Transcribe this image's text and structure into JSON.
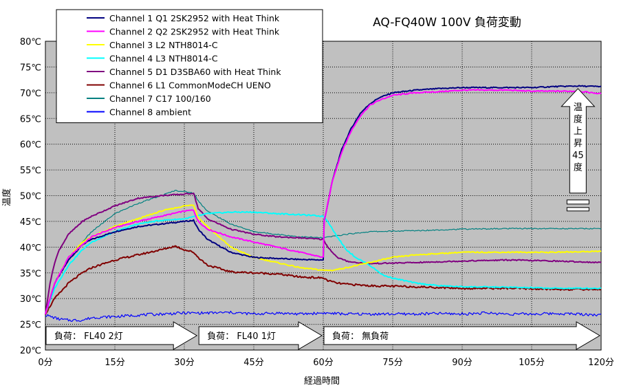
{
  "chart_data": {
    "type": "line",
    "title": "AQ-FQ40W 100V 負荷変動",
    "xlabel": "経過時間",
    "ylabel": "温度",
    "xlim": [
      0,
      120
    ],
    "ylim": [
      20,
      80
    ],
    "x_ticks": [
      0,
      15,
      30,
      45,
      60,
      75,
      90,
      105,
      120
    ],
    "x_tick_labels": [
      "0分",
      "15分",
      "30分",
      "45分",
      "60分",
      "75分",
      "90分",
      "105分",
      "120分"
    ],
    "y_ticks": [
      20,
      25,
      30,
      35,
      40,
      45,
      50,
      55,
      60,
      65,
      70,
      75,
      80
    ],
    "y_tick_labels": [
      "20℃",
      "25℃",
      "30℃",
      "35℃",
      "40℃",
      "45℃",
      "50℃",
      "55℃",
      "60℃",
      "65℃",
      "70℃",
      "75℃",
      "80℃"
    ],
    "grid": true,
    "legend_position": "top-left",
    "series": [
      {
        "name": "Channel 1  Q1  2SK2952 with Heat Think",
        "color": "#000080",
        "points": [
          [
            0,
            27
          ],
          [
            2,
            33
          ],
          [
            5,
            37.5
          ],
          [
            8,
            40.5
          ],
          [
            10,
            41.5
          ],
          [
            15,
            43
          ],
          [
            20,
            44
          ],
          [
            25,
            44.5
          ],
          [
            30,
            45
          ],
          [
            32,
            45.2
          ],
          [
            33,
            43.5
          ],
          [
            35,
            41.5
          ],
          [
            40,
            39
          ],
          [
            45,
            38
          ],
          [
            50,
            37.8
          ],
          [
            55,
            37.6
          ],
          [
            60,
            37.5
          ],
          [
            60.2,
            45
          ],
          [
            62,
            53
          ],
          [
            64,
            59
          ],
          [
            66,
            63
          ],
          [
            68,
            66
          ],
          [
            70,
            67.8
          ],
          [
            72,
            69
          ],
          [
            75,
            70
          ],
          [
            80,
            70.5
          ],
          [
            85,
            70.8
          ],
          [
            90,
            71
          ],
          [
            95,
            71
          ],
          [
            100,
            71
          ],
          [
            105,
            71
          ],
          [
            110,
            71.2
          ],
          [
            115,
            71.3
          ],
          [
            120,
            71.2
          ]
        ]
      },
      {
        "name": "Channel 2  Q2  2SK2952 with Heat Think",
        "color": "#ff00ff",
        "points": [
          [
            0,
            27
          ],
          [
            2,
            33
          ],
          [
            5,
            38
          ],
          [
            8,
            40.5
          ],
          [
            10,
            42
          ],
          [
            15,
            43.8
          ],
          [
            20,
            45
          ],
          [
            25,
            46
          ],
          [
            30,
            47
          ],
          [
            32,
            47.2
          ],
          [
            33,
            45
          ],
          [
            35,
            43.5
          ],
          [
            40,
            42
          ],
          [
            45,
            41
          ],
          [
            50,
            40
          ],
          [
            55,
            39
          ],
          [
            60,
            38
          ],
          [
            60.2,
            45
          ],
          [
            62,
            53
          ],
          [
            64,
            58.5
          ],
          [
            66,
            62.5
          ],
          [
            68,
            65.5
          ],
          [
            70,
            67.5
          ],
          [
            72,
            68.5
          ],
          [
            75,
            69.5
          ],
          [
            80,
            70
          ],
          [
            85,
            70.2
          ],
          [
            90,
            70.5
          ],
          [
            95,
            70.5
          ],
          [
            100,
            70.5
          ],
          [
            105,
            70.3
          ],
          [
            110,
            70.3
          ],
          [
            115,
            70.3
          ],
          [
            120,
            69.8
          ]
        ]
      },
      {
        "name": "Channel 3  L2  NTH8014-C",
        "color": "#ffff00",
        "points": [
          [
            0,
            27
          ],
          [
            2,
            33
          ],
          [
            5,
            38
          ],
          [
            8,
            41
          ],
          [
            10,
            42
          ],
          [
            15,
            44
          ],
          [
            20,
            45.5
          ],
          [
            25,
            47
          ],
          [
            30,
            48
          ],
          [
            32,
            48.2
          ],
          [
            33,
            45.8
          ],
          [
            35,
            44
          ],
          [
            40,
            40
          ],
          [
            45,
            38
          ],
          [
            50,
            37
          ],
          [
            55,
            36
          ],
          [
            60,
            35.5
          ],
          [
            62,
            35.5
          ],
          [
            65,
            36
          ],
          [
            70,
            37
          ],
          [
            75,
            38
          ],
          [
            80,
            38.5
          ],
          [
            90,
            39
          ],
          [
            100,
            39
          ],
          [
            110,
            39
          ],
          [
            120,
            39.2
          ]
        ]
      },
      {
        "name": "Channel 4  L3  NTH8014-C",
        "color": "#00ffff",
        "points": [
          [
            0,
            27
          ],
          [
            2,
            32
          ],
          [
            5,
            36.5
          ],
          [
            8,
            39.5
          ],
          [
            10,
            41
          ],
          [
            15,
            43
          ],
          [
            20,
            44.5
          ],
          [
            25,
            45.2
          ],
          [
            30,
            45.5
          ],
          [
            35,
            46.5
          ],
          [
            40,
            46.8
          ],
          [
            45,
            46.8
          ],
          [
            50,
            46.5
          ],
          [
            55,
            46.3
          ],
          [
            60,
            46
          ],
          [
            61,
            45
          ],
          [
            63,
            42
          ],
          [
            65,
            39.5
          ],
          [
            67,
            38
          ],
          [
            70,
            36.5
          ],
          [
            73,
            34.5
          ],
          [
            75,
            34
          ],
          [
            80,
            33
          ],
          [
            85,
            32.5
          ],
          [
            90,
            32.3
          ],
          [
            100,
            32.2
          ],
          [
            110,
            32
          ],
          [
            120,
            32
          ]
        ]
      },
      {
        "name": "Channel 5  D1  D3SBA60 with Heat Think",
        "color": "#800080",
        "points": [
          [
            0,
            27
          ],
          [
            1,
            33
          ],
          [
            2,
            37
          ],
          [
            3,
            39.5
          ],
          [
            5,
            42.5
          ],
          [
            8,
            45
          ],
          [
            10,
            46
          ],
          [
            15,
            48
          ],
          [
            20,
            49.5
          ],
          [
            25,
            50
          ],
          [
            30,
            50.3
          ],
          [
            32,
            50.5
          ],
          [
            33,
            47.5
          ],
          [
            35,
            45.5
          ],
          [
            40,
            43.5
          ],
          [
            45,
            42.5
          ],
          [
            50,
            42
          ],
          [
            55,
            41.8
          ],
          [
            60,
            41.5
          ],
          [
            61,
            40
          ],
          [
            63,
            38
          ],
          [
            65,
            37.3
          ],
          [
            67,
            37
          ],
          [
            70,
            36.8
          ],
          [
            80,
            37
          ],
          [
            90,
            37.3
          ],
          [
            100,
            37.5
          ],
          [
            110,
            37.3
          ],
          [
            120,
            37
          ]
        ]
      },
      {
        "name": "Channel 6  L1  CommonModeCH UENO",
        "color": "#800000",
        "points": [
          [
            0,
            27
          ],
          [
            2,
            30
          ],
          [
            5,
            33
          ],
          [
            8,
            35
          ],
          [
            10,
            36
          ],
          [
            15,
            37.5
          ],
          [
            20,
            38.5
          ],
          [
            25,
            39.5
          ],
          [
            28,
            40.2
          ],
          [
            30,
            39.5
          ],
          [
            32,
            39
          ],
          [
            33,
            38
          ],
          [
            35,
            36.5
          ],
          [
            40,
            35.2
          ],
          [
            45,
            35
          ],
          [
            50,
            34.8
          ],
          [
            55,
            34.2
          ],
          [
            60,
            34
          ],
          [
            61,
            33.5
          ],
          [
            63,
            33
          ],
          [
            65,
            32.8
          ],
          [
            70,
            32.5
          ],
          [
            80,
            32.3
          ],
          [
            90,
            32
          ],
          [
            100,
            32
          ],
          [
            110,
            31.8
          ],
          [
            120,
            31.8
          ]
        ]
      },
      {
        "name": "Channel 7  C17  100/160",
        "color": "#008080",
        "points": [
          [
            0,
            27
          ],
          [
            2,
            33
          ],
          [
            5,
            37.5
          ],
          [
            8,
            41
          ],
          [
            10,
            43
          ],
          [
            15,
            46.5
          ],
          [
            20,
            48.5
          ],
          [
            25,
            50
          ],
          [
            28,
            51
          ],
          [
            30,
            50.8
          ],
          [
            32,
            50.5
          ],
          [
            33,
            49
          ],
          [
            35,
            47
          ],
          [
            40,
            44.5
          ],
          [
            45,
            43
          ],
          [
            50,
            42.5
          ],
          [
            55,
            42
          ],
          [
            60,
            41.8
          ],
          [
            65,
            42.5
          ],
          [
            70,
            43
          ],
          [
            80,
            43.2
          ],
          [
            90,
            43.5
          ],
          [
            100,
            43.6
          ],
          [
            110,
            43.6
          ],
          [
            120,
            43.6
          ]
        ]
      },
      {
        "name": "Channel 8  ambient",
        "color": "#0000ff",
        "points": [
          [
            0,
            26.8
          ],
          [
            3,
            26
          ],
          [
            5,
            25.8
          ],
          [
            8,
            25.8
          ],
          [
            10,
            26.3
          ],
          [
            15,
            26.5
          ],
          [
            20,
            26.8
          ],
          [
            25,
            27
          ],
          [
            30,
            27.2
          ],
          [
            35,
            27.2
          ],
          [
            40,
            27.3
          ],
          [
            45,
            27
          ],
          [
            50,
            27.2
          ],
          [
            55,
            27
          ],
          [
            60,
            27.2
          ],
          [
            65,
            27
          ],
          [
            70,
            27
          ],
          [
            75,
            27
          ],
          [
            80,
            27
          ],
          [
            85,
            27.1
          ],
          [
            90,
            27
          ],
          [
            95,
            27.2
          ],
          [
            100,
            27
          ],
          [
            105,
            27
          ],
          [
            110,
            27.1
          ],
          [
            115,
            27
          ],
          [
            120,
            26.8
          ]
        ]
      }
    ],
    "annotations": [
      {
        "text": "負荷：  FL40  2灯",
        "x_start": 0,
        "x_end": 33
      },
      {
        "text": "負荷：  FL40  1灯",
        "x_start": 33,
        "x_end": 60
      },
      {
        "text": "負荷：  無負荷",
        "x_start": 60,
        "x_end": 120
      },
      {
        "text": "温度上昇45度",
        "x": 115,
        "y_from": 50.5,
        "y_to": 70
      }
    ]
  }
}
